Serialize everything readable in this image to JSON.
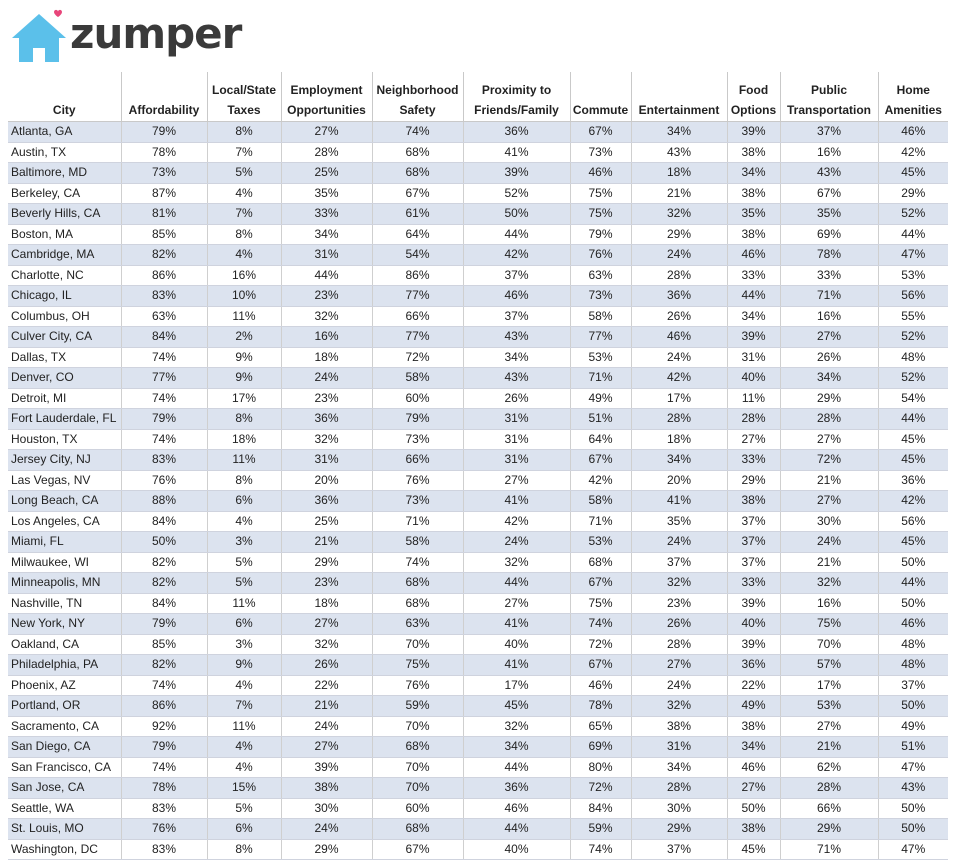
{
  "brand": {
    "name": "zumper",
    "logo_icon": "house-heart-icon",
    "accent_color": "#5bc0ea",
    "heart_color": "#e8457a"
  },
  "table": {
    "headers": [
      "City",
      "Affordability",
      "Local/State Taxes",
      "Employment Opportunities",
      "Neighborhood Safety",
      "Proximity to Friends/Family",
      "Commute",
      "Entertainment",
      "Food Options",
      "Public Transportation",
      "Home Amenities"
    ],
    "rows": [
      [
        "Atlanta, GA",
        "79%",
        "8%",
        "27%",
        "74%",
        "36%",
        "67%",
        "34%",
        "39%",
        "37%",
        "46%"
      ],
      [
        "Austin, TX",
        "78%",
        "7%",
        "28%",
        "68%",
        "41%",
        "73%",
        "43%",
        "38%",
        "16%",
        "42%"
      ],
      [
        "Baltimore, MD",
        "73%",
        "5%",
        "25%",
        "68%",
        "39%",
        "46%",
        "18%",
        "34%",
        "43%",
        "45%"
      ],
      [
        "Berkeley, CA",
        "87%",
        "4%",
        "35%",
        "67%",
        "52%",
        "75%",
        "21%",
        "38%",
        "67%",
        "29%"
      ],
      [
        "Beverly Hills, CA",
        "81%",
        "7%",
        "33%",
        "61%",
        "50%",
        "75%",
        "32%",
        "35%",
        "35%",
        "52%"
      ],
      [
        "Boston, MA",
        "85%",
        "8%",
        "34%",
        "64%",
        "44%",
        "79%",
        "29%",
        "38%",
        "69%",
        "44%"
      ],
      [
        "Cambridge, MA",
        "82%",
        "4%",
        "31%",
        "54%",
        "42%",
        "76%",
        "24%",
        "46%",
        "78%",
        "47%"
      ],
      [
        "Charlotte, NC",
        "86%",
        "16%",
        "44%",
        "86%",
        "37%",
        "63%",
        "28%",
        "33%",
        "33%",
        "53%"
      ],
      [
        "Chicago, IL",
        "83%",
        "10%",
        "23%",
        "77%",
        "46%",
        "73%",
        "36%",
        "44%",
        "71%",
        "56%"
      ],
      [
        "Columbus, OH",
        "63%",
        "11%",
        "32%",
        "66%",
        "37%",
        "58%",
        "26%",
        "34%",
        "16%",
        "55%"
      ],
      [
        "Culver City, CA",
        "84%",
        "2%",
        "16%",
        "77%",
        "43%",
        "77%",
        "46%",
        "39%",
        "27%",
        "52%"
      ],
      [
        "Dallas, TX",
        "74%",
        "9%",
        "18%",
        "72%",
        "34%",
        "53%",
        "24%",
        "31%",
        "26%",
        "48%"
      ],
      [
        "Denver, CO",
        "77%",
        "9%",
        "24%",
        "58%",
        "43%",
        "71%",
        "42%",
        "40%",
        "34%",
        "52%"
      ],
      [
        "Detroit, MI",
        "74%",
        "17%",
        "23%",
        "60%",
        "26%",
        "49%",
        "17%",
        "11%",
        "29%",
        "54%"
      ],
      [
        "Fort Lauderdale, FL",
        "79%",
        "8%",
        "36%",
        "79%",
        "31%",
        "51%",
        "28%",
        "28%",
        "28%",
        "44%"
      ],
      [
        "Houston, TX",
        "74%",
        "18%",
        "32%",
        "73%",
        "31%",
        "64%",
        "18%",
        "27%",
        "27%",
        "45%"
      ],
      [
        "Jersey City, NJ",
        "83%",
        "11%",
        "31%",
        "66%",
        "31%",
        "67%",
        "34%",
        "33%",
        "72%",
        "45%"
      ],
      [
        "Las Vegas, NV",
        "76%",
        "8%",
        "20%",
        "76%",
        "27%",
        "42%",
        "20%",
        "29%",
        "21%",
        "36%"
      ],
      [
        "Long Beach, CA",
        "88%",
        "6%",
        "36%",
        "73%",
        "41%",
        "58%",
        "41%",
        "38%",
        "27%",
        "42%"
      ],
      [
        "Los Angeles, CA",
        "84%",
        "4%",
        "25%",
        "71%",
        "42%",
        "71%",
        "35%",
        "37%",
        "30%",
        "56%"
      ],
      [
        "Miami, FL",
        "50%",
        "3%",
        "21%",
        "58%",
        "24%",
        "53%",
        "24%",
        "37%",
        "24%",
        "45%"
      ],
      [
        "Milwaukee, WI",
        "82%",
        "5%",
        "29%",
        "74%",
        "32%",
        "68%",
        "37%",
        "37%",
        "21%",
        "50%"
      ],
      [
        "Minneapolis, MN",
        "82%",
        "5%",
        "23%",
        "68%",
        "44%",
        "67%",
        "32%",
        "33%",
        "32%",
        "44%"
      ],
      [
        "Nashville, TN",
        "84%",
        "11%",
        "18%",
        "68%",
        "27%",
        "75%",
        "23%",
        "39%",
        "16%",
        "50%"
      ],
      [
        "New York, NY",
        "79%",
        "6%",
        "27%",
        "63%",
        "41%",
        "74%",
        "26%",
        "40%",
        "75%",
        "46%"
      ],
      [
        "Oakland, CA",
        "85%",
        "3%",
        "32%",
        "70%",
        "40%",
        "72%",
        "28%",
        "39%",
        "70%",
        "48%"
      ],
      [
        "Philadelphia, PA",
        "82%",
        "9%",
        "26%",
        "75%",
        "41%",
        "67%",
        "27%",
        "36%",
        "57%",
        "48%"
      ],
      [
        "Phoenix, AZ",
        "74%",
        "4%",
        "22%",
        "76%",
        "17%",
        "46%",
        "24%",
        "22%",
        "17%",
        "37%"
      ],
      [
        "Portland, OR",
        "86%",
        "7%",
        "21%",
        "59%",
        "45%",
        "78%",
        "32%",
        "49%",
        "53%",
        "50%"
      ],
      [
        "Sacramento, CA",
        "92%",
        "11%",
        "24%",
        "70%",
        "32%",
        "65%",
        "38%",
        "38%",
        "27%",
        "49%"
      ],
      [
        "San Diego, CA",
        "79%",
        "4%",
        "27%",
        "68%",
        "34%",
        "69%",
        "31%",
        "34%",
        "21%",
        "51%"
      ],
      [
        "San Francisco, CA",
        "74%",
        "4%",
        "39%",
        "70%",
        "44%",
        "80%",
        "34%",
        "46%",
        "62%",
        "47%"
      ],
      [
        "San Jose, CA",
        "78%",
        "15%",
        "38%",
        "70%",
        "36%",
        "72%",
        "28%",
        "27%",
        "28%",
        "43%"
      ],
      [
        "Seattle, WA",
        "83%",
        "5%",
        "30%",
        "60%",
        "46%",
        "84%",
        "30%",
        "50%",
        "66%",
        "50%"
      ],
      [
        "St. Louis, MO",
        "76%",
        "6%",
        "24%",
        "68%",
        "44%",
        "59%",
        "29%",
        "38%",
        "29%",
        "50%"
      ],
      [
        "Washington, DC",
        "83%",
        "8%",
        "29%",
        "67%",
        "40%",
        "74%",
        "37%",
        "45%",
        "71%",
        "47%"
      ]
    ]
  }
}
